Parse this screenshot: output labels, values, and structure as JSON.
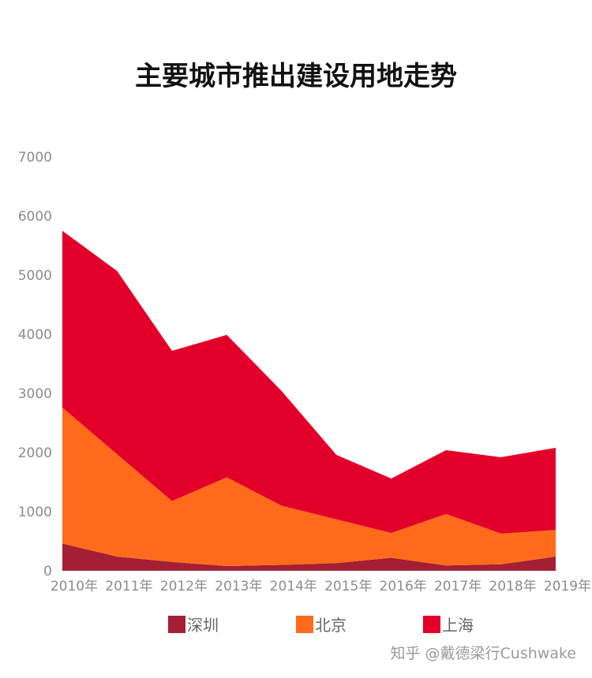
{
  "chart_data": {
    "type": "area",
    "stacked": true,
    "title": "主要城市推出建设用地走势",
    "xlabel": "",
    "ylabel": "",
    "categories": [
      "2010年",
      "2011年",
      "2012年",
      "2013年",
      "2014年",
      "2015年",
      "2016年",
      "2017年",
      "2018年",
      "2019年"
    ],
    "yticks": [
      "0",
      "1000",
      "2000",
      "3000",
      "4000",
      "5000",
      "6000",
      "7000"
    ],
    "ylim": [
      0,
      7000
    ],
    "grid": false,
    "legend_position": "bottom",
    "series": [
      {
        "name": "深圳",
        "color": "#a31f34",
        "values": [
          460,
          240,
          150,
          80,
          100,
          130,
          220,
          90,
          110,
          240
        ]
      },
      {
        "name": "北京",
        "color": "#ff6b1a",
        "values": [
          2300,
          1730,
          1030,
          1500,
          1000,
          740,
          420,
          870,
          520,
          450
        ]
      },
      {
        "name": "上海",
        "color": "#e2002a",
        "values": [
          2990,
          3100,
          2540,
          2410,
          1940,
          1090,
          920,
          1080,
          1290,
          1390
        ]
      }
    ]
  },
  "watermark": "知乎 @戴德梁行Cushwake"
}
